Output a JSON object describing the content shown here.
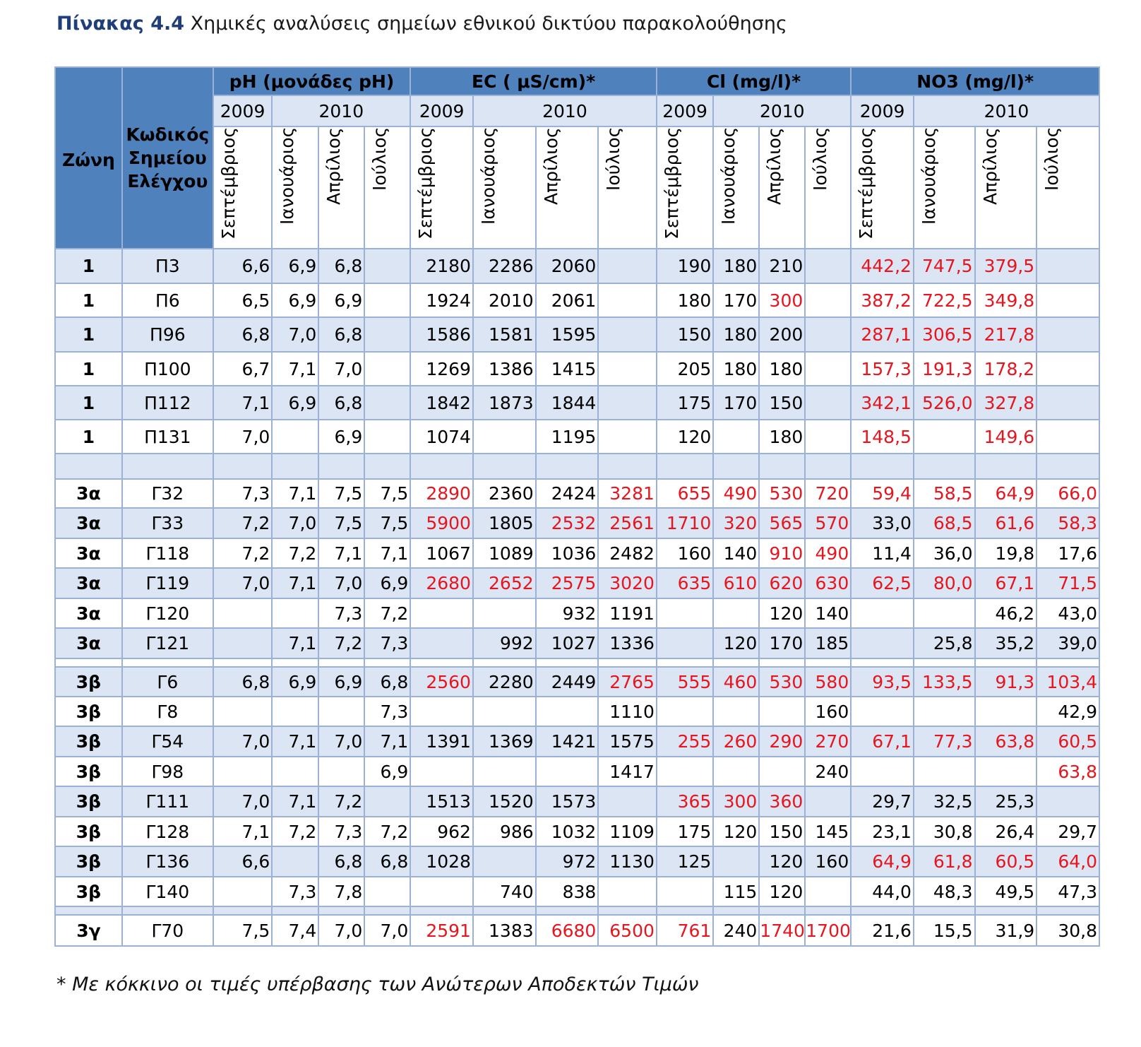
{
  "caption": {
    "label": "Πίνακας 4.4",
    "text": "Χημικές αναλύσεις σημείων εθνικού δικτύου παρακολούθησης"
  },
  "header": {
    "zone": "Ζώνη",
    "code_line1": "Κωδικός",
    "code_line2": "Σημείου",
    "code_line3": "Ελέγχου",
    "groups": [
      "pH (μονάδες pH)",
      "EC ( μS/cm)*",
      "Cl (mg/l)*",
      "NO3 (mg/l)*"
    ],
    "year_a": "2009",
    "year_b": "2010",
    "months": [
      "Σεπτέμβριος",
      "Ιανουάριος",
      "Απρίλιος",
      "Ιούλιος"
    ]
  },
  "colors": {
    "header": "#4f81bd",
    "band": "#dbe5f3",
    "exceed": "#e8141e"
  },
  "rows": [
    {
      "zone": "1",
      "code": "Π3",
      "shade": true,
      "cells": [
        [
          "6,6",
          0
        ],
        [
          "6,9",
          0
        ],
        [
          "6,8",
          0
        ],
        [
          "",
          0
        ],
        [
          "2180",
          0
        ],
        [
          "2286",
          0
        ],
        [
          "2060",
          0
        ],
        [
          "",
          0
        ],
        [
          "190",
          0
        ],
        [
          "180",
          0
        ],
        [
          "210",
          0
        ],
        [
          "",
          0
        ],
        [
          "442,2",
          1
        ],
        [
          "747,5",
          1
        ],
        [
          "379,5",
          1
        ],
        [
          "",
          0
        ]
      ]
    },
    {
      "zone": "1",
      "code": "Π6",
      "shade": false,
      "cells": [
        [
          "6,5",
          0
        ],
        [
          "6,9",
          0
        ],
        [
          "6,9",
          0
        ],
        [
          "",
          0
        ],
        [
          "1924",
          0
        ],
        [
          "2010",
          0
        ],
        [
          "2061",
          0
        ],
        [
          "",
          0
        ],
        [
          "180",
          0
        ],
        [
          "170",
          0
        ],
        [
          "300",
          1
        ],
        [
          "",
          0
        ],
        [
          "387,2",
          1
        ],
        [
          "722,5",
          1
        ],
        [
          "349,8",
          1
        ],
        [
          "",
          0
        ]
      ]
    },
    {
      "zone": "1",
      "code": "Π96",
      "shade": true,
      "cells": [
        [
          "6,8",
          0
        ],
        [
          "7,0",
          0
        ],
        [
          "6,8",
          0
        ],
        [
          "",
          0
        ],
        [
          "1586",
          0
        ],
        [
          "1581",
          0
        ],
        [
          "1595",
          0
        ],
        [
          "",
          0
        ],
        [
          "150",
          0
        ],
        [
          "180",
          0
        ],
        [
          "200",
          0
        ],
        [
          "",
          0
        ],
        [
          "287,1",
          1
        ],
        [
          "306,5",
          1
        ],
        [
          "217,8",
          1
        ],
        [
          "",
          0
        ]
      ]
    },
    {
      "zone": "1",
      "code": "Π100",
      "shade": false,
      "cells": [
        [
          "6,7",
          0
        ],
        [
          "7,1",
          0
        ],
        [
          "7,0",
          0
        ],
        [
          "",
          0
        ],
        [
          "1269",
          0
        ],
        [
          "1386",
          0
        ],
        [
          "1415",
          0
        ],
        [
          "",
          0
        ],
        [
          "205",
          0
        ],
        [
          "180",
          0
        ],
        [
          "180",
          0
        ],
        [
          "",
          0
        ],
        [
          "157,3",
          1
        ],
        [
          "191,3",
          1
        ],
        [
          "178,2",
          1
        ],
        [
          "",
          0
        ]
      ]
    },
    {
      "zone": "1",
      "code": "Π112",
      "shade": true,
      "cells": [
        [
          "7,1",
          0
        ],
        [
          "6,9",
          0
        ],
        [
          "6,8",
          0
        ],
        [
          "",
          0
        ],
        [
          "1842",
          0
        ],
        [
          "1873",
          0
        ],
        [
          "1844",
          0
        ],
        [
          "",
          0
        ],
        [
          "175",
          0
        ],
        [
          "170",
          0
        ],
        [
          "150",
          0
        ],
        [
          "",
          0
        ],
        [
          "342,1",
          1
        ],
        [
          "526,0",
          1
        ],
        [
          "327,8",
          1
        ],
        [
          "",
          0
        ]
      ]
    },
    {
      "zone": "1",
      "code": "Π131",
      "shade": false,
      "cells": [
        [
          "7,0",
          0
        ],
        [
          "",
          0
        ],
        [
          "6,9",
          0
        ],
        [
          "",
          0
        ],
        [
          "1074",
          0
        ],
        [
          "",
          0
        ],
        [
          "1195",
          0
        ],
        [
          "",
          0
        ],
        [
          "120",
          0
        ],
        [
          "",
          0
        ],
        [
          "180",
          0
        ],
        [
          "",
          0
        ],
        [
          "148,5",
          1
        ],
        [
          "",
          0
        ],
        [
          "149,6",
          1
        ],
        [
          "",
          0
        ]
      ]
    },
    {
      "spacer": true,
      "height": 36,
      "shade": true
    },
    {
      "zone": "3α",
      "code": "Γ32",
      "shade": false,
      "cells": [
        [
          "7,3",
          0
        ],
        [
          "7,1",
          0
        ],
        [
          "7,5",
          0
        ],
        [
          "7,5",
          0
        ],
        [
          "2890",
          1
        ],
        [
          "2360",
          0
        ],
        [
          "2424",
          0
        ],
        [
          "3281",
          1
        ],
        [
          "655",
          1
        ],
        [
          "490",
          1
        ],
        [
          "530",
          1
        ],
        [
          "720",
          1
        ],
        [
          "59,4",
          1
        ],
        [
          "58,5",
          1
        ],
        [
          "64,9",
          1
        ],
        [
          "66,0",
          1
        ]
      ]
    },
    {
      "zone": "3α",
      "code": "Γ33",
      "shade": true,
      "cells": [
        [
          "7,2",
          0
        ],
        [
          "7,0",
          0
        ],
        [
          "7,5",
          0
        ],
        [
          "7,5",
          0
        ],
        [
          "5900",
          1
        ],
        [
          "1805",
          0
        ],
        [
          "2532",
          1
        ],
        [
          "2561",
          1
        ],
        [
          "1710",
          1
        ],
        [
          "320",
          1
        ],
        [
          "565",
          1
        ],
        [
          "570",
          1
        ],
        [
          "33,0",
          0
        ],
        [
          "68,5",
          1
        ],
        [
          "61,6",
          1
        ],
        [
          "58,3",
          1
        ]
      ]
    },
    {
      "zone": "3α",
      "code": "Γ118",
      "shade": false,
      "cells": [
        [
          "7,2",
          0
        ],
        [
          "7,2",
          0
        ],
        [
          "7,1",
          0
        ],
        [
          "7,1",
          0
        ],
        [
          "1067",
          0
        ],
        [
          "1089",
          0
        ],
        [
          "1036",
          0
        ],
        [
          "2482",
          0
        ],
        [
          "160",
          0
        ],
        [
          "140",
          0
        ],
        [
          "910",
          1
        ],
        [
          "490",
          1
        ],
        [
          "11,4",
          0
        ],
        [
          "36,0",
          0
        ],
        [
          "19,8",
          0
        ],
        [
          "17,6",
          0
        ]
      ]
    },
    {
      "zone": "3α",
      "code": "Γ119",
      "shade": true,
      "cells": [
        [
          "7,0",
          0
        ],
        [
          "7,1",
          0
        ],
        [
          "7,0",
          0
        ],
        [
          "6,9",
          0
        ],
        [
          "2680",
          1
        ],
        [
          "2652",
          1
        ],
        [
          "2575",
          1
        ],
        [
          "3020",
          1
        ],
        [
          "635",
          1
        ],
        [
          "610",
          1
        ],
        [
          "620",
          1
        ],
        [
          "630",
          1
        ],
        [
          "62,5",
          1
        ],
        [
          "80,0",
          1
        ],
        [
          "67,1",
          1
        ],
        [
          "71,5",
          1
        ]
      ]
    },
    {
      "zone": "3α",
      "code": "Γ120",
      "shade": false,
      "cells": [
        [
          "",
          0
        ],
        [
          "",
          0
        ],
        [
          "7,3",
          0
        ],
        [
          "7,2",
          0
        ],
        [
          "",
          0
        ],
        [
          "",
          0
        ],
        [
          "932",
          0
        ],
        [
          "1191",
          0
        ],
        [
          "",
          0
        ],
        [
          "",
          0
        ],
        [
          "120",
          0
        ],
        [
          "140",
          0
        ],
        [
          "",
          0
        ],
        [
          "",
          0
        ],
        [
          "46,2",
          0
        ],
        [
          "43,0",
          0
        ]
      ]
    },
    {
      "zone": "3α",
      "code": "Γ121",
      "shade": true,
      "cells": [
        [
          "",
          0
        ],
        [
          "7,1",
          0
        ],
        [
          "7,2",
          0
        ],
        [
          "7,3",
          0
        ],
        [
          "",
          0
        ],
        [
          "992",
          0
        ],
        [
          "1027",
          0
        ],
        [
          "1336",
          0
        ],
        [
          "",
          0
        ],
        [
          "120",
          0
        ],
        [
          "170",
          0
        ],
        [
          "185",
          0
        ],
        [
          "",
          0
        ],
        [
          "25,8",
          0
        ],
        [
          "35,2",
          0
        ],
        [
          "39,0",
          0
        ]
      ]
    },
    {
      "spacer": true,
      "height": 12,
      "shade": false
    },
    {
      "zone": "3β",
      "code": "Γ6",
      "shade": true,
      "cells": [
        [
          "6,8",
          0
        ],
        [
          "6,9",
          0
        ],
        [
          "6,9",
          0
        ],
        [
          "6,8",
          0
        ],
        [
          "2560",
          1
        ],
        [
          "2280",
          0
        ],
        [
          "2449",
          0
        ],
        [
          "2765",
          1
        ],
        [
          "555",
          1
        ],
        [
          "460",
          1
        ],
        [
          "530",
          1
        ],
        [
          "580",
          1
        ],
        [
          "93,5",
          1
        ],
        [
          "133,5",
          1
        ],
        [
          "91,3",
          1
        ],
        [
          "103,4",
          1
        ]
      ]
    },
    {
      "zone": "3β",
      "code": "Γ8",
      "shade": false,
      "cells": [
        [
          "",
          0
        ],
        [
          "",
          0
        ],
        [
          "",
          0
        ],
        [
          "7,3",
          0
        ],
        [
          "",
          0
        ],
        [
          "",
          0
        ],
        [
          "",
          0
        ],
        [
          "1110",
          0
        ],
        [
          "",
          0
        ],
        [
          "",
          0
        ],
        [
          "",
          0
        ],
        [
          "160",
          0
        ],
        [
          "",
          0
        ],
        [
          "",
          0
        ],
        [
          "",
          0
        ],
        [
          "42,9",
          0
        ]
      ]
    },
    {
      "zone": "3β",
      "code": "Γ54",
      "shade": true,
      "cells": [
        [
          "7,0",
          0
        ],
        [
          "7,1",
          0
        ],
        [
          "7,0",
          0
        ],
        [
          "7,1",
          0
        ],
        [
          "1391",
          0
        ],
        [
          "1369",
          0
        ],
        [
          "1421",
          0
        ],
        [
          "1575",
          0
        ],
        [
          "255",
          1
        ],
        [
          "260",
          1
        ],
        [
          "290",
          1
        ],
        [
          "270",
          1
        ],
        [
          "67,1",
          1
        ],
        [
          "77,3",
          1
        ],
        [
          "63,8",
          1
        ],
        [
          "60,5",
          1
        ]
      ]
    },
    {
      "zone": "3β",
      "code": "Γ98",
      "shade": false,
      "cells": [
        [
          "",
          0
        ],
        [
          "",
          0
        ],
        [
          "",
          0
        ],
        [
          "6,9",
          0
        ],
        [
          "",
          0
        ],
        [
          "",
          0
        ],
        [
          "",
          0
        ],
        [
          "1417",
          0
        ],
        [
          "",
          0
        ],
        [
          "",
          0
        ],
        [
          "",
          0
        ],
        [
          "240",
          0
        ],
        [
          "",
          0
        ],
        [
          "",
          0
        ],
        [
          "",
          0
        ],
        [
          "63,8",
          1
        ]
      ]
    },
    {
      "zone": "3β",
      "code": "Γ111",
      "shade": true,
      "cells": [
        [
          "7,0",
          0
        ],
        [
          "7,1",
          0
        ],
        [
          "7,2",
          0
        ],
        [
          "",
          0
        ],
        [
          "1513",
          0
        ],
        [
          "1520",
          0
        ],
        [
          "1573",
          0
        ],
        [
          "",
          0
        ],
        [
          "365",
          1
        ],
        [
          "300",
          1
        ],
        [
          "360",
          1
        ],
        [
          "",
          0
        ],
        [
          "29,7",
          0
        ],
        [
          "32,5",
          0
        ],
        [
          "25,3",
          0
        ],
        [
          "",
          0
        ]
      ]
    },
    {
      "zone": "3β",
      "code": "Γ128",
      "shade": false,
      "cells": [
        [
          "7,1",
          0
        ],
        [
          "7,2",
          0
        ],
        [
          "7,3",
          0
        ],
        [
          "7,2",
          0
        ],
        [
          "962",
          0
        ],
        [
          "986",
          0
        ],
        [
          "1032",
          0
        ],
        [
          "1109",
          0
        ],
        [
          "175",
          0
        ],
        [
          "120",
          0
        ],
        [
          "150",
          0
        ],
        [
          "145",
          0
        ],
        [
          "23,1",
          0
        ],
        [
          "30,8",
          0
        ],
        [
          "26,4",
          0
        ],
        [
          "29,7",
          0
        ]
      ]
    },
    {
      "zone": "3β",
      "code": "Γ136",
      "shade": true,
      "cells": [
        [
          "6,6",
          0
        ],
        [
          "",
          0
        ],
        [
          "6,8",
          0
        ],
        [
          "6,8",
          0
        ],
        [
          "1028",
          0
        ],
        [
          "",
          0
        ],
        [
          "972",
          0
        ],
        [
          "1130",
          0
        ],
        [
          "125",
          0
        ],
        [
          "",
          0
        ],
        [
          "120",
          0
        ],
        [
          "160",
          0
        ],
        [
          "64,9",
          1
        ],
        [
          "61,8",
          1
        ],
        [
          "60,5",
          1
        ],
        [
          "64,0",
          1
        ]
      ]
    },
    {
      "zone": "3β",
      "code": "Γ140",
      "shade": false,
      "cells": [
        [
          "",
          0
        ],
        [
          "7,3",
          0
        ],
        [
          "7,8",
          0
        ],
        [
          "",
          0
        ],
        [
          "",
          0
        ],
        [
          "740",
          0
        ],
        [
          "838",
          0
        ],
        [
          "",
          0
        ],
        [
          "",
          0
        ],
        [
          "115",
          0
        ],
        [
          "120",
          0
        ],
        [
          "",
          0
        ],
        [
          "44,0",
          0
        ],
        [
          "48,3",
          0
        ],
        [
          "49,5",
          0
        ],
        [
          "47,3",
          0
        ]
      ]
    },
    {
      "spacer": true,
      "height": 12,
      "shade": true
    },
    {
      "zone": "3γ",
      "code": "Γ70",
      "shade": false,
      "cells": [
        [
          "7,5",
          0
        ],
        [
          "7,4",
          0
        ],
        [
          "7,0",
          0
        ],
        [
          "7,0",
          0
        ],
        [
          "2591",
          1
        ],
        [
          "1383",
          0
        ],
        [
          "6680",
          1
        ],
        [
          "6500",
          1
        ],
        [
          "761",
          1
        ],
        [
          "240",
          0
        ],
        [
          "1740",
          1
        ],
        [
          "1700",
          1
        ],
        [
          "21,6",
          0
        ],
        [
          "15,5",
          0
        ],
        [
          "31,9",
          0
        ],
        [
          "30,8",
          0
        ]
      ]
    }
  ],
  "footnote": "* Με κόκκινο οι τιμές υπέρβασης των Ανώτερων Αποδεκτών Τιμών"
}
